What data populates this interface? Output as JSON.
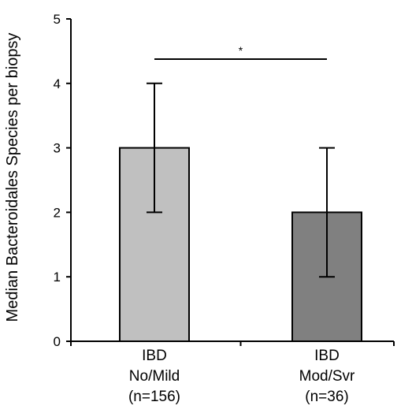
{
  "chart_data": {
    "type": "bar",
    "ylabel": "Median Bacteroidales Species per biopsy",
    "xlabel": "",
    "ylim": [
      0,
      5
    ],
    "yticks": [
      0,
      1,
      2,
      3,
      4,
      5
    ],
    "categories": [
      {
        "lines": [
          "IBD",
          "No/Mild",
          "(n=156)"
        ]
      },
      {
        "lines": [
          "IBD",
          "Mod/Svr",
          "(n=36)"
        ]
      }
    ],
    "values": [
      3,
      2
    ],
    "error_bars": [
      {
        "low": 2,
        "high": 4
      },
      {
        "low": 1,
        "high": 3
      }
    ],
    "bar_colors": [
      "#c0c0c0",
      "#808080"
    ],
    "significance": {
      "between": [
        0,
        1
      ],
      "label": "*"
    },
    "grid": false,
    "legend": "none"
  }
}
